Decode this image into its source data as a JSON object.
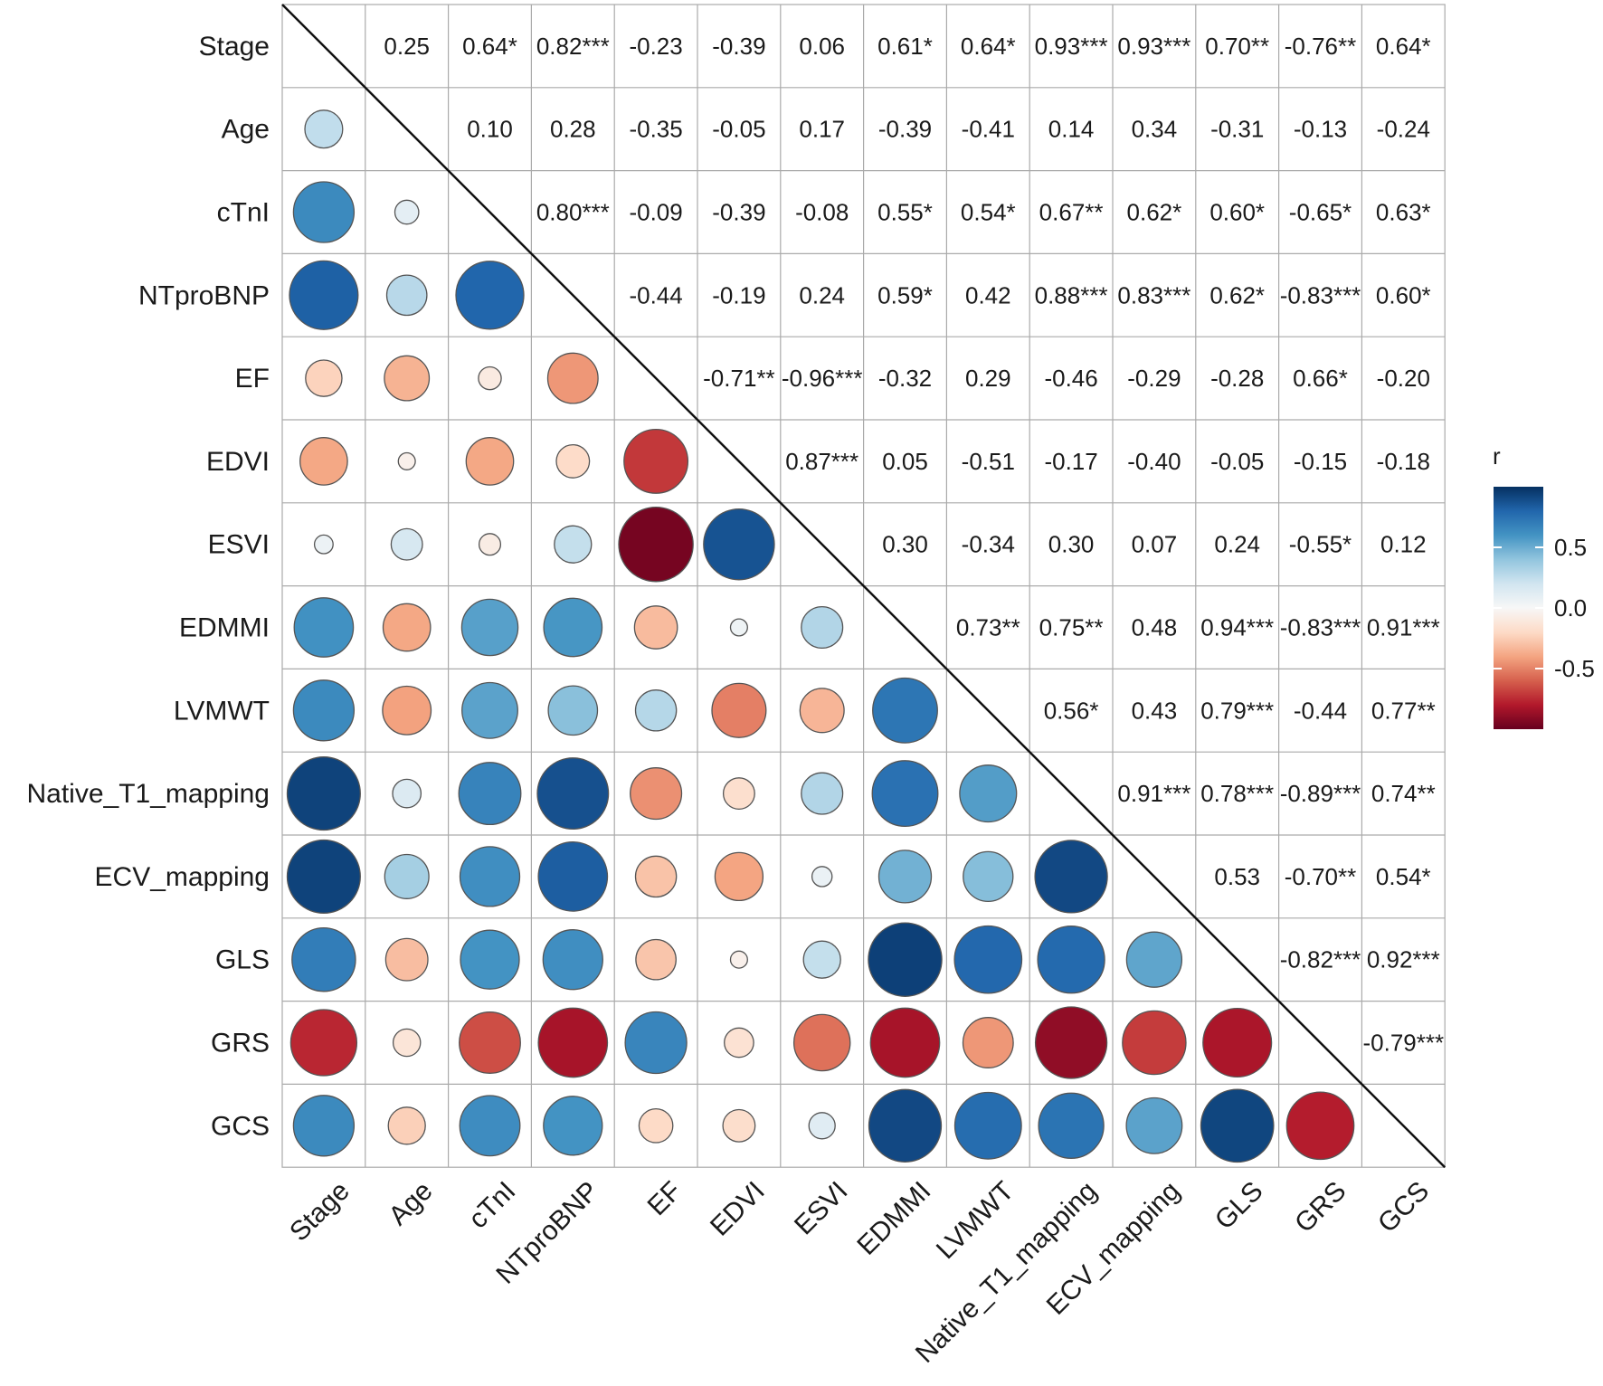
{
  "chart_data": {
    "type": "heatmap",
    "subtype": "correlation-matrix",
    "variables": [
      "Stage",
      "Age",
      "cTnI",
      "NTproBNP",
      "EF",
      "EDVI",
      "ESVI",
      "EDMMI",
      "LVMWT",
      "Native_T1_mapping",
      "ECV_mapping",
      "GLS",
      "GRS",
      "GCS"
    ],
    "upper_labels": [
      [
        "",
        "0.25",
        "0.64*",
        "0.82***",
        "-0.23",
        "-0.39",
        "0.06",
        "0.61*",
        "0.64*",
        "0.93***",
        "0.93***",
        "0.70**",
        "-0.76**",
        "0.64*"
      ],
      [
        "",
        "",
        "0.10",
        "0.28",
        "-0.35",
        "-0.05",
        "0.17",
        "-0.39",
        "-0.41",
        "0.14",
        "0.34",
        "-0.31",
        "-0.13",
        "-0.24"
      ],
      [
        "",
        "",
        "",
        "0.80***",
        "-0.09",
        "-0.39",
        "-0.08",
        "0.55*",
        "0.54*",
        "0.67**",
        "0.62*",
        "0.60*",
        "-0.65*",
        "0.63*"
      ],
      [
        "",
        "",
        "",
        "",
        "-0.44",
        "-0.19",
        "0.24",
        "0.59*",
        "0.42",
        "0.88***",
        "0.83***",
        "0.62*",
        "-0.83***",
        "0.60*"
      ],
      [
        "",
        "",
        "",
        "",
        "",
        "-0.71**",
        "-0.96***",
        "-0.32",
        "0.29",
        "-0.46",
        "-0.29",
        "-0.28",
        "0.66*",
        "-0.20"
      ],
      [
        "",
        "",
        "",
        "",
        "",
        "",
        "0.87***",
        "0.05",
        "-0.51",
        "-0.17",
        "-0.40",
        "-0.05",
        "-0.15",
        "-0.18"
      ],
      [
        "",
        "",
        "",
        "",
        "",
        "",
        "",
        "0.30",
        "-0.34",
        "0.30",
        "0.07",
        "0.24",
        "-0.55*",
        "0.12"
      ],
      [
        "",
        "",
        "",
        "",
        "",
        "",
        "",
        "",
        "0.73**",
        "0.75**",
        "0.48",
        "0.94***",
        "-0.83***",
        "0.91***"
      ],
      [
        "",
        "",
        "",
        "",
        "",
        "",
        "",
        "",
        "",
        "0.56*",
        "0.43",
        "0.79***",
        "-0.44",
        "0.77**"
      ],
      [
        "",
        "",
        "",
        "",
        "",
        "",
        "",
        "",
        "",
        "",
        "0.91***",
        "0.78***",
        "-0.89***",
        "0.74**"
      ],
      [
        "",
        "",
        "",
        "",
        "",
        "",
        "",
        "",
        "",
        "",
        "",
        "0.53",
        "-0.70**",
        "0.54*"
      ],
      [
        "",
        "",
        "",
        "",
        "",
        "",
        "",
        "",
        "",
        "",
        "",
        "",
        "-0.82***",
        "0.92***"
      ],
      [
        "",
        "",
        "",
        "",
        "",
        "",
        "",
        "",
        "",
        "",
        "",
        "",
        "",
        "-0.79***"
      ],
      [
        "",
        "",
        "",
        "",
        "",
        "",
        "",
        "",
        "",
        "",
        "",
        "",
        "",
        ""
      ]
    ],
    "lower_values": [
      [],
      [
        0.25
      ],
      [
        0.64,
        0.1
      ],
      [
        0.82,
        0.28,
        0.8
      ],
      [
        -0.23,
        -0.35,
        -0.09,
        -0.44
      ],
      [
        -0.39,
        -0.05,
        -0.39,
        -0.19,
        -0.71
      ],
      [
        0.06,
        0.17,
        -0.08,
        0.24,
        -0.96,
        0.87
      ],
      [
        0.61,
        -0.39,
        0.55,
        0.59,
        -0.32,
        0.05,
        0.3
      ],
      [
        0.64,
        -0.41,
        0.54,
        0.42,
        0.29,
        -0.51,
        -0.34,
        0.73
      ],
      [
        0.93,
        0.14,
        0.67,
        0.88,
        -0.46,
        -0.17,
        0.3,
        0.75,
        0.56
      ],
      [
        0.93,
        0.34,
        0.62,
        0.83,
        -0.29,
        -0.4,
        0.07,
        0.48,
        0.43,
        0.91
      ],
      [
        0.7,
        -0.31,
        0.6,
        0.62,
        -0.28,
        -0.05,
        0.24,
        0.94,
        0.79,
        0.78,
        0.53
      ],
      [
        -0.76,
        -0.13,
        -0.65,
        -0.83,
        0.66,
        -0.15,
        -0.55,
        -0.83,
        -0.44,
        -0.89,
        -0.7,
        -0.82
      ],
      [
        0.64,
        -0.24,
        0.63,
        0.6,
        -0.2,
        -0.18,
        0.12,
        0.91,
        0.77,
        0.74,
        0.54,
        0.92,
        -0.79
      ]
    ],
    "colorbar": {
      "title": "r",
      "range": [
        -1,
        1
      ],
      "ticks": [
        {
          "value": 0.5,
          "label": "0.5"
        },
        {
          "value": 0.0,
          "label": "0.0"
        },
        {
          "value": -0.5,
          "label": "-0.5"
        }
      ],
      "colors": [
        "#67001f",
        "#b2182b",
        "#d6604d",
        "#f4a582",
        "#fddbc7",
        "#f7f7f7",
        "#d1e5f0",
        "#92c5de",
        "#4393c3",
        "#2166ac",
        "#053061"
      ]
    }
  }
}
